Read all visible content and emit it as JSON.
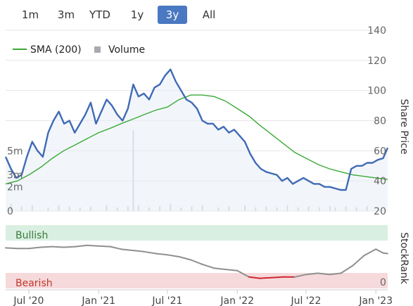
{
  "range_tabs": [
    {
      "label": "1m",
      "active": false
    },
    {
      "label": "3m",
      "active": false
    },
    {
      "label": "YTD",
      "active": false
    },
    {
      "label": "1y",
      "active": false
    },
    {
      "label": "3y",
      "active": true
    },
    {
      "label": "All",
      "active": false
    }
  ],
  "colors": {
    "price": "#3f6ab5",
    "sma": "#3aaa35",
    "volume": "#c8c8d0",
    "stockrank": "#8f8f8f",
    "stockrank_bearish": "#d0272f",
    "bullish_band": "#d9efe1",
    "bearish_band": "#f6d9db",
    "active_tab": "#4a78c2"
  },
  "chart_data": [
    {
      "type": "line",
      "title": "",
      "legend": [
        {
          "label": "SMA (200)",
          "marker": "line"
        },
        {
          "label": "Volume",
          "marker": "square"
        }
      ],
      "legend_position": "top-left",
      "ylabel": "Share Price",
      "ylim": [
        20,
        140
      ],
      "y_ticks": [
        "140",
        "120",
        "100",
        "80",
        "60",
        "40",
        "20"
      ],
      "volume_axis_ticks": [
        "5m",
        "3m",
        "2m",
        "0"
      ],
      "volume_ylim": [
        0,
        7
      ],
      "xlim": [
        "2020-05-01",
        "2023-02-01"
      ],
      "x_ticks": [
        "Jul '20",
        "Jan '21",
        "Jul '21",
        "Jan '22",
        "Jul '22",
        "Jan '23"
      ],
      "grid": true,
      "series": [
        {
          "name": "",
          "values": [
            [
              "2020-05-01",
              56
            ],
            [
              "2020-05-15",
              48
            ],
            [
              "2020-05-29",
              42
            ],
            [
              "2020-06-12",
              44
            ],
            [
              "2020-06-26",
              56
            ],
            [
              "2020-07-10",
              66
            ],
            [
              "2020-07-24",
              60
            ],
            [
              "2020-08-07",
              56
            ],
            [
              "2020-08-21",
              72
            ],
            [
              "2020-09-04",
              80
            ],
            [
              "2020-09-18",
              86
            ],
            [
              "2020-10-02",
              78
            ],
            [
              "2020-10-16",
              80
            ],
            [
              "2020-10-30",
              72
            ],
            [
              "2020-11-13",
              78
            ],
            [
              "2020-11-27",
              84
            ],
            [
              "2020-12-11",
              92
            ],
            [
              "2020-12-25",
              78
            ],
            [
              "2021-01-08",
              86
            ],
            [
              "2021-01-22",
              94
            ],
            [
              "2021-02-05",
              90
            ],
            [
              "2021-02-19",
              84
            ],
            [
              "2021-03-05",
              80
            ],
            [
              "2021-03-19",
              88
            ],
            [
              "2021-04-02",
              104
            ],
            [
              "2021-04-16",
              96
            ],
            [
              "2021-04-30",
              98
            ],
            [
              "2021-05-14",
              94
            ],
            [
              "2021-05-28",
              102
            ],
            [
              "2021-06-11",
              104
            ],
            [
              "2021-06-25",
              110
            ],
            [
              "2021-07-09",
              114
            ],
            [
              "2021-07-23",
              106
            ],
            [
              "2021-08-06",
              100
            ],
            [
              "2021-08-20",
              94
            ],
            [
              "2021-09-03",
              92
            ],
            [
              "2021-09-17",
              88
            ],
            [
              "2021-10-01",
              80
            ],
            [
              "2021-10-15",
              78
            ],
            [
              "2021-10-29",
              78
            ],
            [
              "2021-11-12",
              74
            ],
            [
              "2021-11-26",
              76
            ],
            [
              "2021-12-10",
              72
            ],
            [
              "2021-12-24",
              74
            ],
            [
              "2022-01-07",
              70
            ],
            [
              "2022-01-21",
              66
            ],
            [
              "2022-02-04",
              58
            ],
            [
              "2022-02-18",
              52
            ],
            [
              "2022-03-04",
              48
            ],
            [
              "2022-03-18",
              46
            ],
            [
              "2022-04-01",
              45
            ],
            [
              "2022-04-15",
              44
            ],
            [
              "2022-04-29",
              40
            ],
            [
              "2022-05-13",
              42
            ],
            [
              "2022-05-27",
              38
            ],
            [
              "2022-06-10",
              40
            ],
            [
              "2022-06-24",
              42
            ],
            [
              "2022-07-08",
              40
            ],
            [
              "2022-07-22",
              38
            ],
            [
              "2022-08-05",
              38
            ],
            [
              "2022-08-19",
              36
            ],
            [
              "2022-09-02",
              36
            ],
            [
              "2022-09-16",
              35
            ],
            [
              "2022-09-30",
              34
            ],
            [
              "2022-10-14",
              34
            ],
            [
              "2022-10-28",
              48
            ],
            [
              "2022-11-11",
              50
            ],
            [
              "2022-11-25",
              50
            ],
            [
              "2022-12-09",
              52
            ],
            [
              "2022-12-23",
              52
            ],
            [
              "2023-01-06",
              54
            ],
            [
              "2023-01-20",
              55
            ],
            [
              "2023-02-01",
              62
            ]
          ]
        },
        {
          "name": "SMA (200)",
          "values": [
            [
              "2020-05-01",
              38
            ],
            [
              "2020-06-01",
              40
            ],
            [
              "2020-07-01",
              44
            ],
            [
              "2020-08-01",
              49
            ],
            [
              "2020-09-01",
              55
            ],
            [
              "2020-10-01",
              60
            ],
            [
              "2020-11-01",
              64
            ],
            [
              "2020-12-01",
              68
            ],
            [
              "2021-01-01",
              72
            ],
            [
              "2021-02-01",
              75
            ],
            [
              "2021-03-01",
              78
            ],
            [
              "2021-04-01",
              81
            ],
            [
              "2021-05-01",
              84
            ],
            [
              "2021-06-01",
              87
            ],
            [
              "2021-07-01",
              89
            ],
            [
              "2021-08-01",
              94
            ],
            [
              "2021-09-01",
              97
            ],
            [
              "2021-10-01",
              97
            ],
            [
              "2021-11-01",
              96
            ],
            [
              "2021-12-01",
              93
            ],
            [
              "2022-01-01",
              88
            ],
            [
              "2022-02-01",
              83
            ],
            [
              "2022-03-01",
              77
            ],
            [
              "2022-04-01",
              71
            ],
            [
              "2022-05-01",
              65
            ],
            [
              "2022-06-01",
              59
            ],
            [
              "2022-07-01",
              55
            ],
            [
              "2022-08-01",
              51
            ],
            [
              "2022-09-01",
              48
            ],
            [
              "2022-10-01",
              46
            ],
            [
              "2022-11-01",
              44
            ],
            [
              "2022-12-01",
              43
            ],
            [
              "2023-01-01",
              42
            ],
            [
              "2023-02-01",
              41
            ]
          ]
        },
        {
          "name": "Volume",
          "values": [
            [
              "2020-05-15",
              0.6
            ],
            [
              "2020-06-12",
              0.4
            ],
            [
              "2020-07-10",
              0.5
            ],
            [
              "2020-08-21",
              0.3
            ],
            [
              "2020-09-18",
              0.5
            ],
            [
              "2020-10-16",
              0.4
            ],
            [
              "2020-11-13",
              0.3
            ],
            [
              "2020-12-11",
              0.4
            ],
            [
              "2021-01-22",
              0.5
            ],
            [
              "2021-02-19",
              0.3
            ],
            [
              "2021-03-19",
              0.4
            ],
            [
              "2021-04-02",
              6.7
            ],
            [
              "2021-04-16",
              0.5
            ],
            [
              "2021-05-14",
              0.3
            ],
            [
              "2021-06-11",
              0.4
            ],
            [
              "2021-07-09",
              0.6
            ],
            [
              "2021-08-06",
              0.3
            ],
            [
              "2021-09-03",
              0.4
            ],
            [
              "2021-10-01",
              0.5
            ],
            [
              "2021-11-12",
              0.3
            ],
            [
              "2021-12-10",
              0.4
            ],
            [
              "2022-01-21",
              0.5
            ],
            [
              "2022-02-18",
              0.3
            ],
            [
              "2022-03-18",
              0.4
            ],
            [
              "2022-04-15",
              0.3
            ],
            [
              "2022-05-13",
              0.5
            ],
            [
              "2022-06-10",
              0.3
            ],
            [
              "2022-07-08",
              0.4
            ],
            [
              "2022-08-05",
              0.3
            ],
            [
              "2022-09-02",
              0.4
            ],
            [
              "2022-09-16",
              0.3
            ],
            [
              "2022-10-14",
              0.4
            ],
            [
              "2022-11-11",
              0.3
            ],
            [
              "2022-12-09",
              0.4
            ],
            [
              "2023-01-06",
              0.3
            ]
          ]
        }
      ]
    },
    {
      "type": "line",
      "title": "",
      "ylabel": "StockRank",
      "ylim": [
        0,
        100
      ],
      "y_ticks": [
        "0"
      ],
      "bands": [
        {
          "label": "Bullish",
          "from": 80,
          "to": 100
        },
        {
          "label": "Bearish",
          "from": 0,
          "to": 20
        }
      ],
      "series": [
        {
          "name": "",
          "values": [
            [
              "2020-05-01",
              64
            ],
            [
              "2020-06-01",
              63
            ],
            [
              "2020-07-01",
              63
            ],
            [
              "2020-08-01",
              65
            ],
            [
              "2020-09-01",
              66
            ],
            [
              "2020-10-01",
              65
            ],
            [
              "2020-11-01",
              66
            ],
            [
              "2020-12-01",
              68
            ],
            [
              "2021-01-01",
              67
            ],
            [
              "2021-02-01",
              66
            ],
            [
              "2021-03-01",
              62
            ],
            [
              "2021-04-01",
              60
            ],
            [
              "2021-05-01",
              58
            ],
            [
              "2021-06-01",
              55
            ],
            [
              "2021-07-01",
              53
            ],
            [
              "2021-08-01",
              50
            ],
            [
              "2021-09-01",
              45
            ],
            [
              "2021-10-01",
              38
            ],
            [
              "2021-11-01",
              32
            ],
            [
              "2021-12-01",
              30
            ],
            [
              "2022-01-01",
              28
            ],
            [
              "2022-02-01",
              18
            ],
            [
              "2022-03-01",
              16
            ],
            [
              "2022-04-01",
              17
            ],
            [
              "2022-05-01",
              18
            ],
            [
              "2022-06-01",
              18
            ],
            [
              "2022-07-01",
              22
            ],
            [
              "2022-08-01",
              24
            ],
            [
              "2022-09-01",
              22
            ],
            [
              "2022-10-01",
              24
            ],
            [
              "2022-11-01",
              36
            ],
            [
              "2022-12-01",
              52
            ],
            [
              "2023-01-01",
              62
            ],
            [
              "2023-01-20",
              56
            ],
            [
              "2023-02-01",
              55
            ]
          ]
        }
      ]
    }
  ],
  "x_axis": {
    "ticks": [
      "Jul '20",
      "Jan '21",
      "Jul '21",
      "Jan '22",
      "Jul '22",
      "Jan '23"
    ]
  }
}
